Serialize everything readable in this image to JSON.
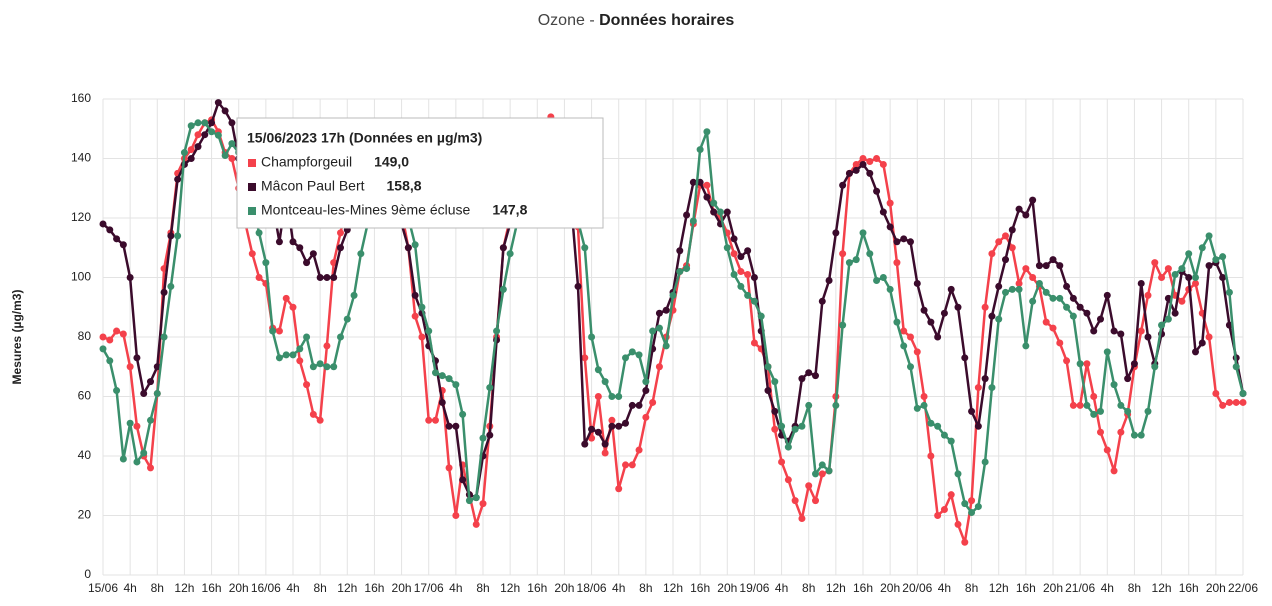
{
  "chart_data": {
    "type": "line",
    "title": "Ozone -",
    "subtitle": "Données horaires",
    "y_label": "Mesures (µg/m3)",
    "categories": [
      "15/06",
      null,
      null,
      null,
      "4h",
      null,
      null,
      null,
      "8h",
      null,
      null,
      null,
      "12h",
      null,
      null,
      null,
      "16h",
      null,
      null,
      null,
      "20h",
      null,
      null,
      null,
      "16/06",
      null,
      null,
      null,
      "4h",
      null,
      null,
      null,
      "8h",
      null,
      null,
      null,
      "12h",
      null,
      null,
      null,
      "16h",
      null,
      null,
      null,
      "20h",
      null,
      null,
      null,
      "17/06",
      null,
      null,
      null,
      "4h",
      null,
      null,
      null,
      "8h",
      null,
      null,
      null,
      "12h",
      null,
      null,
      null,
      "16h",
      null,
      null,
      null,
      "20h",
      null,
      null,
      null,
      "18/06",
      null,
      null,
      null,
      "4h",
      null,
      null,
      null,
      "8h",
      null,
      null,
      null,
      "12h",
      null,
      null,
      null,
      "16h",
      null,
      null,
      null,
      "20h",
      null,
      null,
      null,
      "19/06",
      null,
      null,
      null,
      "4h",
      null,
      null,
      null,
      "8h",
      null,
      null,
      null,
      "12h",
      null,
      null,
      null,
      "16h",
      null,
      null,
      null,
      "20h",
      null,
      null,
      null,
      "20/06",
      null,
      null,
      null,
      "4h",
      null,
      null,
      null,
      "8h",
      null,
      null,
      null,
      "12h",
      null,
      null,
      null,
      "16h",
      null,
      null,
      null,
      "20h",
      null,
      null,
      null,
      "21/06",
      null,
      null,
      null,
      "4h",
      null,
      null,
      null,
      "8h",
      null,
      null,
      null,
      "12h",
      null,
      null,
      null,
      "16h",
      null,
      null,
      null,
      "20h",
      null,
      null,
      null,
      "22/06"
    ],
    "series": [
      {
        "name": "Champforgeuil",
        "color": "#f4414b",
        "values": [
          80,
          79,
          82,
          81,
          70,
          50,
          40,
          36,
          61,
          103,
          115,
          135,
          140,
          143,
          148,
          152,
          153,
          149.0,
          142,
          140,
          130,
          118,
          108,
          100,
          98,
          83,
          82,
          93,
          90,
          72,
          64,
          54,
          52,
          77,
          105,
          115,
          125,
          130,
          135,
          138,
          140,
          138,
          135,
          130,
          122,
          110,
          87,
          80,
          52,
          52,
          62,
          36,
          20,
          37,
          27,
          17,
          24,
          50,
          80,
          110,
          120,
          130,
          138,
          145,
          150,
          152,
          154,
          148,
          140,
          130,
          117,
          73,
          46,
          60,
          41,
          52,
          29,
          37,
          37,
          42,
          53,
          58,
          70,
          80,
          89,
          102,
          104,
          118,
          131,
          131,
          122,
          120,
          115,
          108,
          102,
          101,
          78,
          76,
          70,
          49,
          38,
          32,
          25,
          19,
          30,
          25,
          34,
          35,
          60,
          108,
          135,
          138,
          140,
          139,
          140,
          138,
          125,
          105,
          82,
          80,
          75,
          60,
          40,
          20,
          22,
          27,
          17,
          11,
          25,
          63,
          90,
          108,
          112,
          114,
          110,
          98,
          103,
          100,
          97,
          85,
          83,
          78,
          72,
          57,
          57,
          71,
          60,
          48,
          42,
          35,
          48,
          54,
          70,
          82,
          94,
          105,
          100,
          103,
          94,
          92,
          96,
          98,
          88,
          80,
          61,
          57,
          58,
          58,
          58
        ]
      },
      {
        "name": "Mâcon Paul Bert",
        "color": "#3b0b2c",
        "values": [
          118,
          116,
          113,
          111,
          100,
          73,
          61,
          65,
          70,
          95,
          114,
          133,
          138,
          140,
          144,
          148,
          152,
          158.8,
          156,
          152,
          140,
          130,
          125,
          120,
          120,
          125,
          112,
          128,
          112,
          110,
          105,
          108,
          100,
          100,
          100,
          110,
          116,
          122,
          128,
          132,
          135,
          133,
          130,
          125,
          118,
          110,
          94,
          88,
          77,
          72,
          58,
          50,
          50,
          32,
          27,
          26,
          40,
          47,
          79,
          110,
          118,
          125,
          132,
          138,
          142,
          145,
          145,
          140,
          135,
          125,
          97,
          44,
          49,
          48,
          44,
          50,
          50,
          51,
          57,
          57,
          62,
          76,
          88,
          89,
          95,
          109,
          121,
          132,
          132,
          127,
          122,
          118,
          122,
          113,
          107,
          109,
          100,
          82,
          62,
          55,
          47,
          45,
          50,
          66,
          68,
          67,
          92,
          99,
          115,
          131,
          135,
          136,
          138,
          135,
          129,
          122,
          117,
          112,
          113,
          112,
          98,
          89,
          85,
          80,
          88,
          96,
          90,
          73,
          55,
          50,
          66,
          87,
          97,
          106,
          116,
          123,
          121,
          126,
          104,
          104,
          106,
          104,
          97,
          93,
          90,
          88,
          82,
          86,
          94,
          82,
          81,
          66,
          71,
          98,
          80,
          71,
          81,
          93,
          88,
          102,
          100,
          75,
          78,
          104,
          105,
          100,
          84,
          73,
          61
        ]
      },
      {
        "name": "Montceau-les-Mines 9ème écluse",
        "color": "#3a8f6c",
        "values": [
          76,
          72,
          62,
          39,
          51,
          38,
          41,
          52,
          61,
          80,
          97,
          114,
          142,
          151,
          152,
          152,
          149,
          147.8,
          141,
          145,
          142,
          135,
          125,
          115,
          105,
          82,
          73,
          74,
          74,
          76,
          80,
          70,
          71,
          70,
          70,
          80,
          86,
          94,
          108,
          118,
          125,
          128,
          130,
          128,
          125,
          120,
          111,
          90,
          82,
          68,
          67,
          66,
          64,
          54,
          25,
          26,
          46,
          63,
          82,
          96,
          108,
          118,
          125,
          132,
          138,
          140,
          138,
          135,
          130,
          125,
          119,
          110,
          80,
          69,
          65,
          60,
          60,
          73,
          75,
          74,
          65,
          82,
          83,
          77,
          94,
          102,
          103,
          119,
          143,
          149,
          125,
          122,
          110,
          101,
          97,
          94,
          92,
          87,
          70,
          65,
          50,
          43,
          49,
          50,
          57,
          34,
          37,
          35,
          57,
          84,
          105,
          106,
          115,
          108,
          99,
          100,
          96,
          85,
          77,
          70,
          56,
          57,
          51,
          50,
          47,
          45,
          34,
          24,
          21,
          23,
          38,
          63,
          86,
          95,
          96,
          96,
          77,
          92,
          98,
          95,
          93,
          93,
          90,
          87,
          71,
          57,
          54,
          55,
          75,
          64,
          57,
          55,
          47,
          47,
          55,
          70,
          84,
          86,
          101,
          103,
          108,
          100,
          110,
          114,
          106,
          107,
          95,
          70,
          61
        ]
      }
    ],
    "ylim": [
      0,
      160
    ],
    "yticks": [
      0,
      20,
      40,
      60,
      80,
      100,
      120,
      140,
      160
    ],
    "grid": true,
    "tooltip": {
      "title": "15/06/2023 17h (Données en µg/m3)",
      "value_labels": [
        "149,0",
        "158,8",
        "147,8"
      ]
    }
  }
}
